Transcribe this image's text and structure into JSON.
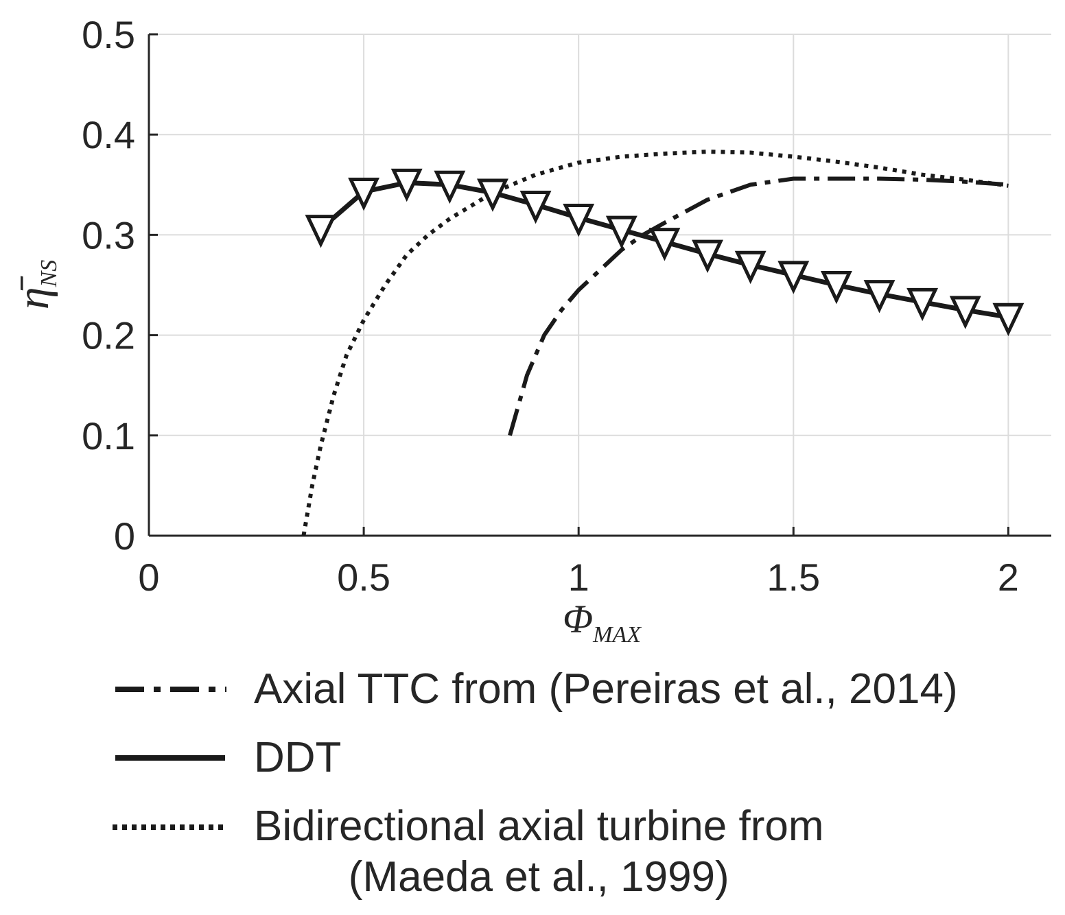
{
  "chart_data": {
    "type": "line",
    "xlabel_main": "Φ",
    "xlabel_sub": "MAX",
    "ylabel_main": "η̄",
    "ylabel_sub": "NS",
    "xlim": [
      0,
      2.1
    ],
    "ylim": [
      0,
      0.5
    ],
    "x_ticks": [
      0,
      0.5,
      1,
      1.5,
      2
    ],
    "x_tick_labels": [
      "0",
      "0.5",
      "1",
      "1.5",
      "2"
    ],
    "y_ticks": [
      0,
      0.1,
      0.2,
      0.3,
      0.4,
      0.5
    ],
    "y_tick_labels": [
      "0",
      "0.1",
      "0.2",
      "0.3",
      "0.4",
      "0.5"
    ],
    "grid": true,
    "legend_position": "below",
    "series": [
      {
        "name": "Axial TTC from (Pereiras et al., 2014)",
        "style": "dash-dot",
        "x": [
          0.84,
          0.88,
          0.92,
          0.96,
          1.0,
          1.05,
          1.1,
          1.15,
          1.2,
          1.3,
          1.4,
          1.5,
          1.6,
          1.7,
          1.8,
          1.9,
          2.0
        ],
        "y": [
          0.1,
          0.16,
          0.2,
          0.225,
          0.245,
          0.265,
          0.285,
          0.3,
          0.312,
          0.335,
          0.35,
          0.356,
          0.356,
          0.356,
          0.355,
          0.353,
          0.35
        ]
      },
      {
        "name": "DDT",
        "style": "solid-triangle",
        "x": [
          0.4,
          0.5,
          0.6,
          0.7,
          0.8,
          0.9,
          1.0,
          1.1,
          1.2,
          1.3,
          1.4,
          1.5,
          1.6,
          1.7,
          1.8,
          1.9,
          2.0
        ],
        "y": [
          0.306,
          0.343,
          0.352,
          0.35,
          0.342,
          0.33,
          0.317,
          0.305,
          0.293,
          0.281,
          0.27,
          0.26,
          0.25,
          0.241,
          0.233,
          0.225,
          0.218
        ]
      },
      {
        "name": "Bidirectional axial turbine from (Maeda et al., 1999)",
        "name_lines": [
          "Bidirectional axial turbine from",
          "(Maeda et al., 1999)"
        ],
        "style": "dotted",
        "x": [
          0.36,
          0.38,
          0.4,
          0.43,
          0.46,
          0.5,
          0.55,
          0.6,
          0.65,
          0.7,
          0.8,
          0.9,
          1.0,
          1.1,
          1.2,
          1.3,
          1.4,
          1.5,
          1.6,
          1.7,
          1.8,
          1.9,
          2.0
        ],
        "y": [
          0.0,
          0.05,
          0.09,
          0.14,
          0.18,
          0.215,
          0.25,
          0.28,
          0.3,
          0.316,
          0.342,
          0.36,
          0.372,
          0.378,
          0.381,
          0.383,
          0.382,
          0.378,
          0.373,
          0.367,
          0.36,
          0.355,
          0.349
        ]
      }
    ]
  }
}
